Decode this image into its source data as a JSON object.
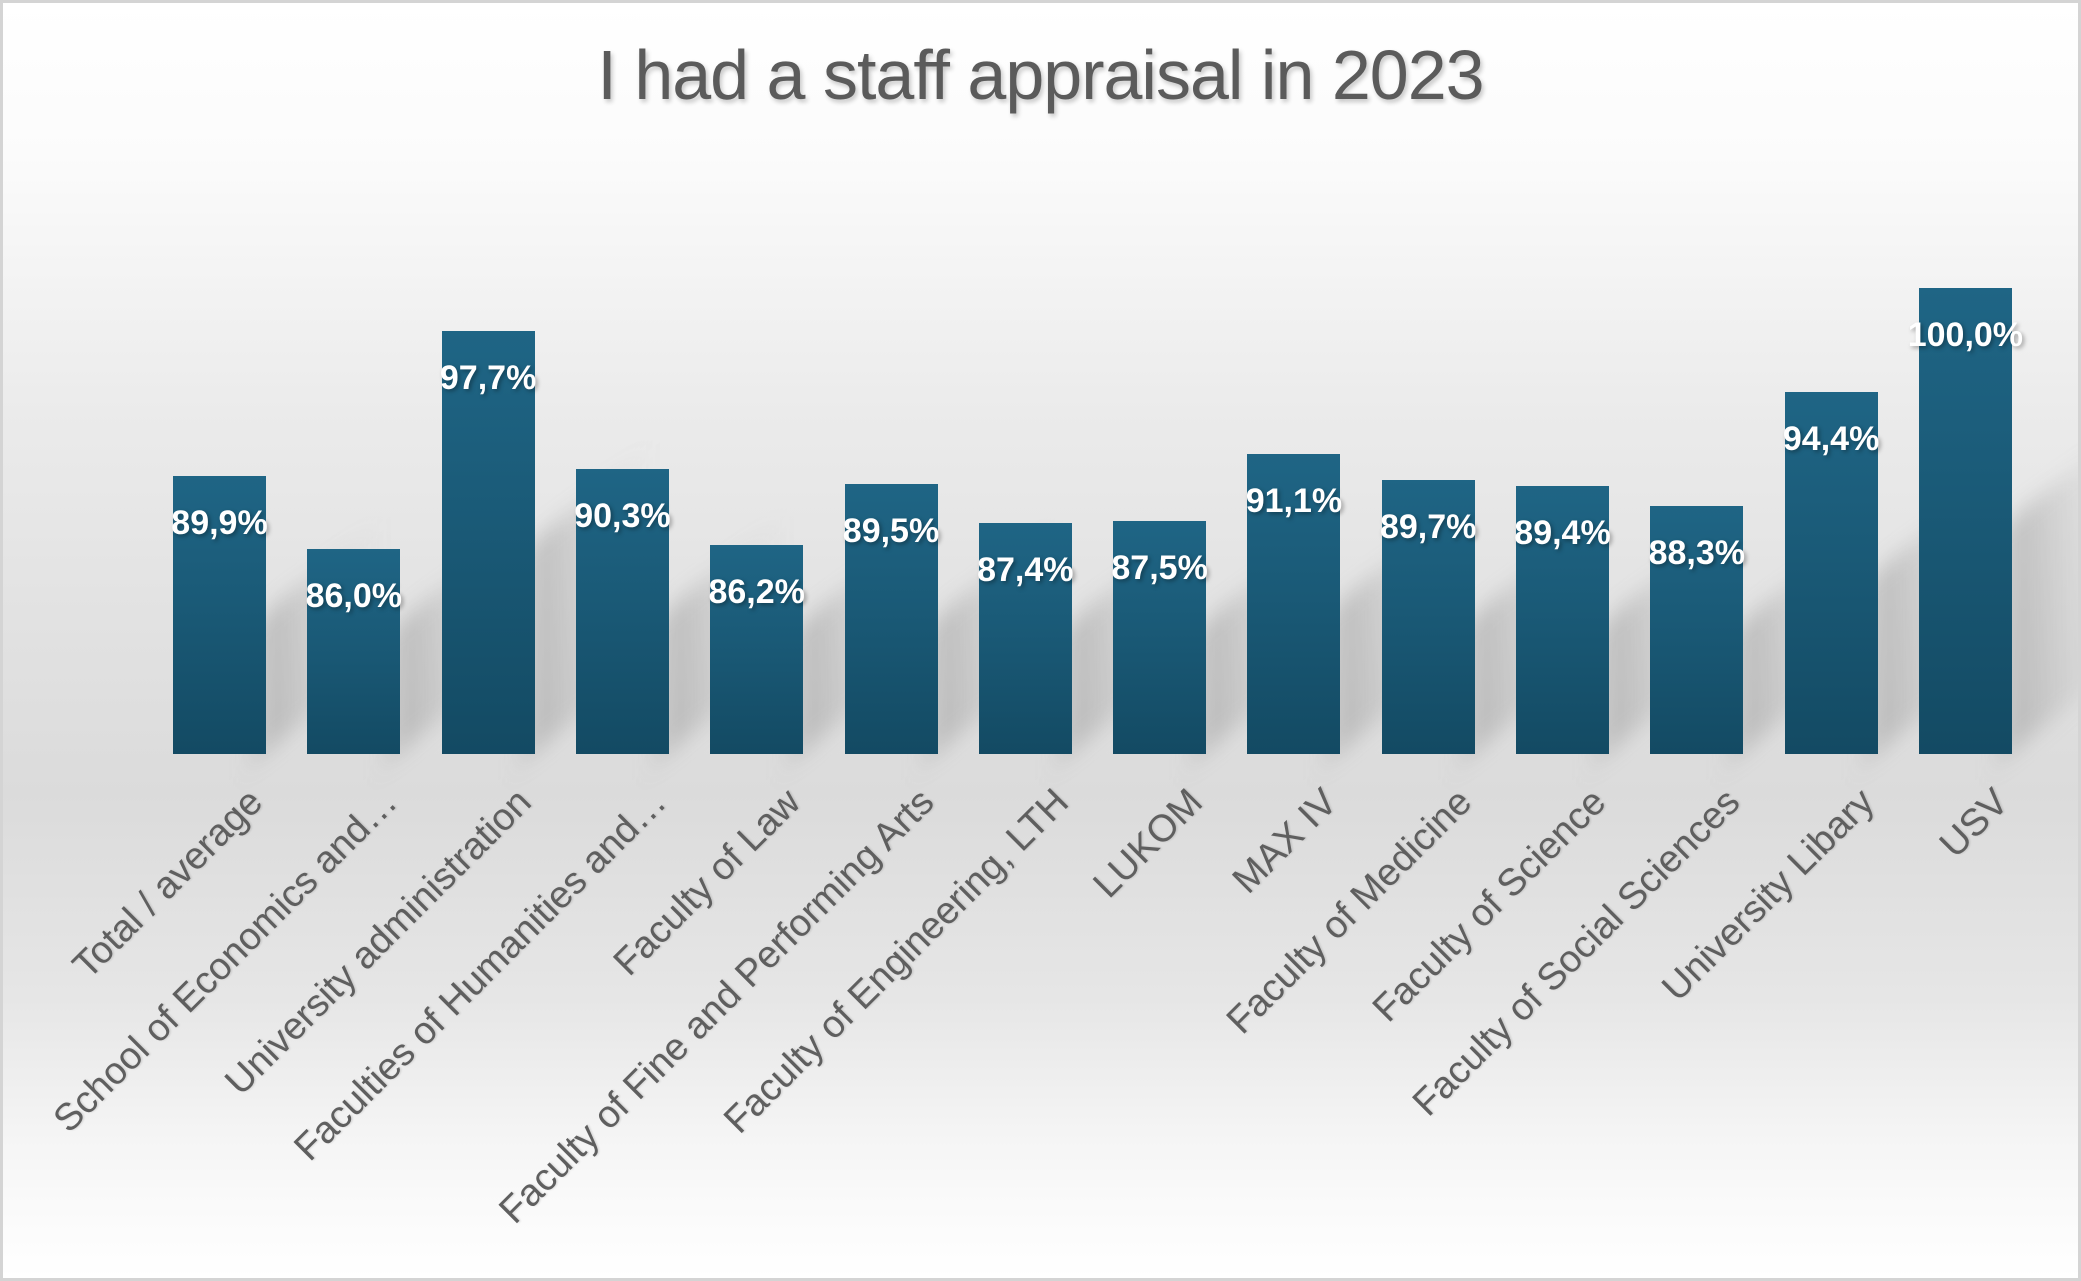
{
  "title": "I had a staff appraisal in 2023",
  "chart_data": {
    "type": "bar",
    "title": "I had a staff appraisal in 2023",
    "xlabel": "",
    "ylabel": "",
    "ylim": [
      75,
      100
    ],
    "grid": false,
    "legend": false,
    "value_format": "percent-comma-decimal",
    "categories": [
      "Total / average",
      "School of Economics and…",
      "University administration",
      "Faculties of Humanities and…",
      "Faculty of Law",
      "Faculty of Fine and Performing Arts",
      "Faculty of Engineering, LTH",
      "LUKOM",
      "MAX IV",
      "Faculty of Medicine",
      "Faculty of Science",
      "Faculty of Social Sciences",
      "University Libary",
      "USV"
    ],
    "values": [
      89.9,
      86.0,
      97.7,
      90.3,
      86.2,
      89.5,
      87.4,
      87.5,
      91.1,
      89.7,
      89.4,
      88.3,
      94.4,
      100.0
    ],
    "value_labels": [
      "89,9%",
      "86,0%",
      "97,7%",
      "90,3%",
      "86,2%",
      "89,5%",
      "87,4%",
      "87,5%",
      "91,1%",
      "89,7%",
      "89,4%",
      "88,3%",
      "94,4%",
      "100,0%"
    ],
    "colors": {
      "bar_top": "#1f6585",
      "bar_bottom": "#134a63",
      "value_label": "#ffffff",
      "category_label": "#5f5f5f",
      "title": "#5b5b5b",
      "background_mid": "#dbdbdb",
      "border": "#d4d4d4"
    }
  }
}
